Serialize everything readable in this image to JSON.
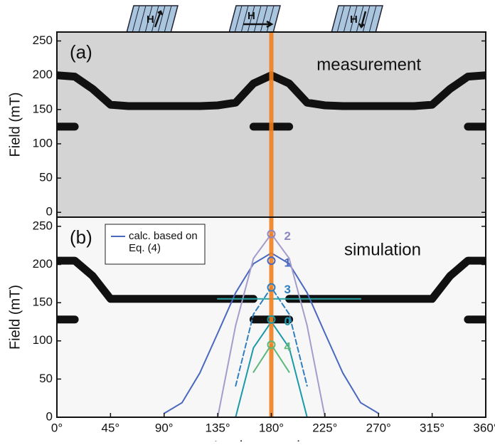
{
  "icons": [
    "H",
    "H",
    "H"
  ],
  "chart_data": [
    {
      "type": "line",
      "panel_label": "(a)",
      "annotation": "measurement",
      "ylabel": "Field (mT)",
      "xlim": [
        0,
        360
      ],
      "ylim": [
        -7,
        263
      ],
      "yticks": [
        0,
        50,
        100,
        150,
        200,
        250
      ],
      "highlight_x": 180,
      "highlight_color": "#f07f1f",
      "background": "#d4d4d4",
      "x": [
        0,
        15,
        30,
        45,
        60,
        75,
        90,
        105,
        120,
        135,
        150,
        165,
        180,
        195,
        210,
        225,
        240,
        255,
        270,
        285,
        300,
        315,
        330,
        345,
        360
      ],
      "series": [
        {
          "color": "#111111",
          "band": true,
          "values": [
            200,
            198,
            180,
            157,
            155,
            155,
            155,
            155,
            155,
            156,
            160,
            188,
            200,
            188,
            160,
            156,
            155,
            155,
            155,
            155,
            155,
            157,
            180,
            198,
            200
          ]
        },
        {
          "color": "#111111",
          "band": true,
          "values": [
            125,
            125,
            null,
            null,
            null,
            null,
            null,
            null,
            null,
            null,
            null,
            125,
            125,
            125,
            null,
            null,
            null,
            null,
            null,
            null,
            null,
            null,
            null,
            125,
            125
          ]
        }
      ]
    },
    {
      "type": "line",
      "panel_label": "(b)",
      "annotation": "simulation",
      "ylabel": "Field (mT)",
      "xlabel": "In-plane angle φ",
      "xlabel_subscript": "H",
      "xlim": [
        0,
        360
      ],
      "ylim": [
        0,
        262
      ],
      "yticks": [
        0,
        50,
        100,
        150,
        200,
        250
      ],
      "xticks": [
        {
          "value": 0,
          "label": "0°"
        },
        {
          "value": 45,
          "label": "45°"
        },
        {
          "value": 90,
          "label": "90°"
        },
        {
          "value": 135,
          "label": "135°"
        },
        {
          "value": 180,
          "label": "180°"
        },
        {
          "value": 225,
          "label": "225°"
        },
        {
          "value": 270,
          "label": "270°"
        },
        {
          "value": 315,
          "label": "315°"
        },
        {
          "value": 360,
          "label": "360°"
        }
      ],
      "highlight_x": 180,
      "highlight_color": "#f07f1f",
      "background": "#f7f7f7",
      "x": [
        0,
        15,
        30,
        45,
        60,
        75,
        90,
        105,
        120,
        135,
        150,
        165,
        180,
        195,
        210,
        225,
        240,
        255,
        270,
        285,
        300,
        315,
        330,
        345,
        360
      ],
      "series": [
        {
          "color": "#111111",
          "band": true,
          "values": [
            205,
            205,
            185,
            155,
            155,
            155,
            155,
            155,
            155,
            155,
            155,
            155,
            null,
            155,
            155,
            155,
            155,
            155,
            155,
            155,
            155,
            155,
            185,
            205,
            205
          ]
        },
        {
          "color": "#111111",
          "band": true,
          "values": [
            128,
            128,
            null,
            null,
            null,
            null,
            null,
            null,
            null,
            null,
            null,
            128,
            128,
            128,
            null,
            null,
            null,
            null,
            null,
            null,
            null,
            null,
            null,
            128,
            128
          ]
        },
        {
          "name": "calc. based on Eq. (4)",
          "color": "#4a68c0",
          "dash": "solid",
          "values": [
            null,
            null,
            null,
            null,
            null,
            null,
            5,
            19,
            58,
            110,
            163,
            201,
            215,
            201,
            163,
            110,
            58,
            19,
            5,
            null,
            null,
            null,
            null,
            null,
            null
          ]
        },
        {
          "color": "#a49ccc",
          "dash": "solid",
          "values": [
            null,
            null,
            null,
            null,
            null,
            null,
            null,
            null,
            null,
            0,
            120,
            208,
            240,
            208,
            120,
            0,
            null,
            null,
            null,
            null,
            null,
            null,
            null,
            null,
            null
          ]
        },
        {
          "color": "#2f7fc0",
          "dash": "dashed",
          "values": [
            null,
            null,
            null,
            null,
            null,
            null,
            null,
            null,
            null,
            null,
            41,
            135,
            170,
            135,
            41,
            null,
            null,
            null,
            null,
            null,
            null,
            null,
            null,
            null,
            null
          ]
        },
        {
          "color": "#1a9aa8",
          "dash": "solid",
          "values": [
            null,
            null,
            null,
            null,
            null,
            null,
            null,
            null,
            null,
            null,
            0,
            91,
            125,
            91,
            0,
            null,
            null,
            null,
            null,
            null,
            null,
            null,
            null,
            null,
            null
          ]
        },
        {
          "color": "#5cb87b",
          "dash": "solid",
          "values": [
            null,
            null,
            null,
            null,
            null,
            null,
            null,
            null,
            null,
            null,
            null,
            59,
            95,
            59,
            null,
            null,
            null,
            null,
            null,
            null,
            null,
            null,
            null,
            null,
            null
          ]
        },
        {
          "color": "#2aa6a6",
          "dash": "solid",
          "values": [
            null,
            null,
            null,
            null,
            null,
            null,
            null,
            null,
            null,
            155,
            155,
            155,
            155,
            155,
            155,
            155,
            155,
            155,
            null,
            null,
            null,
            null,
            null,
            null,
            null
          ]
        }
      ],
      "markers": [
        {
          "label": "2",
          "x": 180,
          "y": 240,
          "color": "#8f86c2"
        },
        {
          "label": "1",
          "x": 180,
          "y": 205,
          "color": "#4a68c0"
        },
        {
          "label": "3",
          "x": 180,
          "y": 170,
          "color": "#2f7fc0"
        },
        {
          "label": "0",
          "x": 180,
          "y": 128,
          "color": "#1a9aa8"
        },
        {
          "label": "4",
          "x": 180,
          "y": 95,
          "color": "#5cb87b"
        }
      ]
    }
  ]
}
